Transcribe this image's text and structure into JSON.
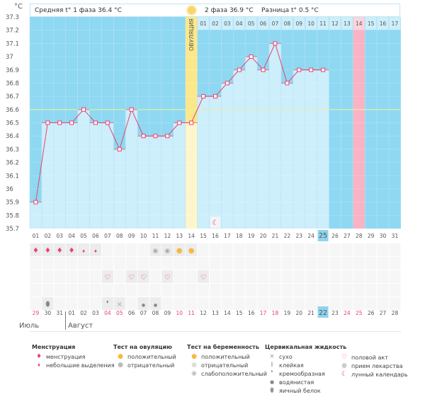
{
  "header": {
    "unit": "°C",
    "phase1": "Средняя t° 1 фаза 36.4 °C",
    "phase2": "2 фаза 36.9 °C",
    "diff": "Разница t° 0.5 °C",
    "ovulation_label": "ОВУЛЯЦИЯ"
  },
  "colors": {
    "dark": "#8fd8f2",
    "light": "#cdeefb",
    "line": "#e8436f",
    "ovulation": "#fbe88a",
    "ovulation_light": "#fdf6cc",
    "pink": "#f9b3c4",
    "coverline": "#e9efa0",
    "highlight": "#8fd3ef"
  },
  "chart_data": {
    "type": "line",
    "ylabel": "°C",
    "ylim": [
      35.7,
      37.3
    ],
    "yticks": [
      "37.3",
      "37.2",
      "37.1",
      "37",
      "36.9",
      "36.8",
      "36.7",
      "36.6",
      "36.5",
      "36.4",
      "36.3",
      "36.2",
      "36.1",
      "36",
      "35.9",
      "35.8",
      "35.7"
    ],
    "days": [
      "01",
      "02",
      "03",
      "04",
      "05",
      "06",
      "07",
      "08",
      "09",
      "10",
      "11",
      "12",
      "13",
      "14",
      "15",
      "16",
      "17",
      "18",
      "19",
      "20",
      "21",
      "22",
      "23",
      "24",
      "25",
      "26",
      "27",
      "28",
      "29",
      "30",
      "31"
    ],
    "temps": [
      35.9,
      36.5,
      36.5,
      36.5,
      36.6,
      36.5,
      36.5,
      36.3,
      36.6,
      36.4,
      36.4,
      36.4,
      36.5,
      36.5,
      36.7,
      36.7,
      36.8,
      36.9,
      37.0,
      36.9,
      37.1,
      36.8,
      36.9,
      36.9,
      36.9
    ],
    "coverline": 36.6,
    "ovulation_day": 14,
    "expected_period_day": 28,
    "today_day": 25,
    "moon_day": 16,
    "phase2_labels": [
      "01",
      "02",
      "03",
      "04",
      "05",
      "06",
      "07",
      "08",
      "09",
      "10",
      "11",
      "12",
      "13",
      "14",
      "15",
      "16",
      "17"
    ]
  },
  "calendar": {
    "dates": [
      "29",
      "30",
      "31",
      "01",
      "02",
      "03",
      "04",
      "05",
      "06",
      "07",
      "08",
      "09",
      "10",
      "11",
      "12",
      "13",
      "14",
      "15",
      "16",
      "17",
      "18",
      "19",
      "20",
      "21",
      "22",
      "23",
      "24",
      "25",
      "26",
      "27",
      "28"
    ],
    "red_dates": [
      1,
      7,
      8,
      13,
      14,
      20,
      21,
      27,
      28
    ],
    "month1": "Июль",
    "month2": "Август"
  },
  "symbols": {
    "row1": {
      "1": "menstruation",
      "2": "menstruation",
      "3": "menstruation",
      "4": "menstruation",
      "5": "spotting",
      "6": "spotting",
      "11": "ov-negative",
      "12": "ov-negative",
      "13": "ov-positive",
      "14": "ov-positive"
    },
    "row3": {
      "7": "heart",
      "9": "heart",
      "10": "heart",
      "12": "heart",
      "15": "heart"
    },
    "row5": {
      "2": "egg-white",
      "7": "creamy",
      "8": "dry",
      "10": "watery",
      "11": "watery"
    }
  },
  "legend": {
    "menstruation": {
      "title": "Менструация",
      "items": [
        "менструация",
        "небольшие выделения"
      ]
    },
    "ov_test": {
      "title": "Тест на овуляцию",
      "items": [
        "положительный",
        "отрицательный"
      ]
    },
    "preg_test": {
      "title": "Тест на беременность",
      "items": [
        "положительный",
        "отрицательный",
        "слабоположительный"
      ]
    },
    "fluid": {
      "title": "Цервикальная жидкость",
      "items": [
        "сухо",
        "клейкая",
        "кремообразная",
        "водянистая",
        "яичный белок"
      ]
    },
    "other": {
      "items": [
        "половой акт",
        "прием лекарства",
        "лунный календарь"
      ]
    }
  }
}
